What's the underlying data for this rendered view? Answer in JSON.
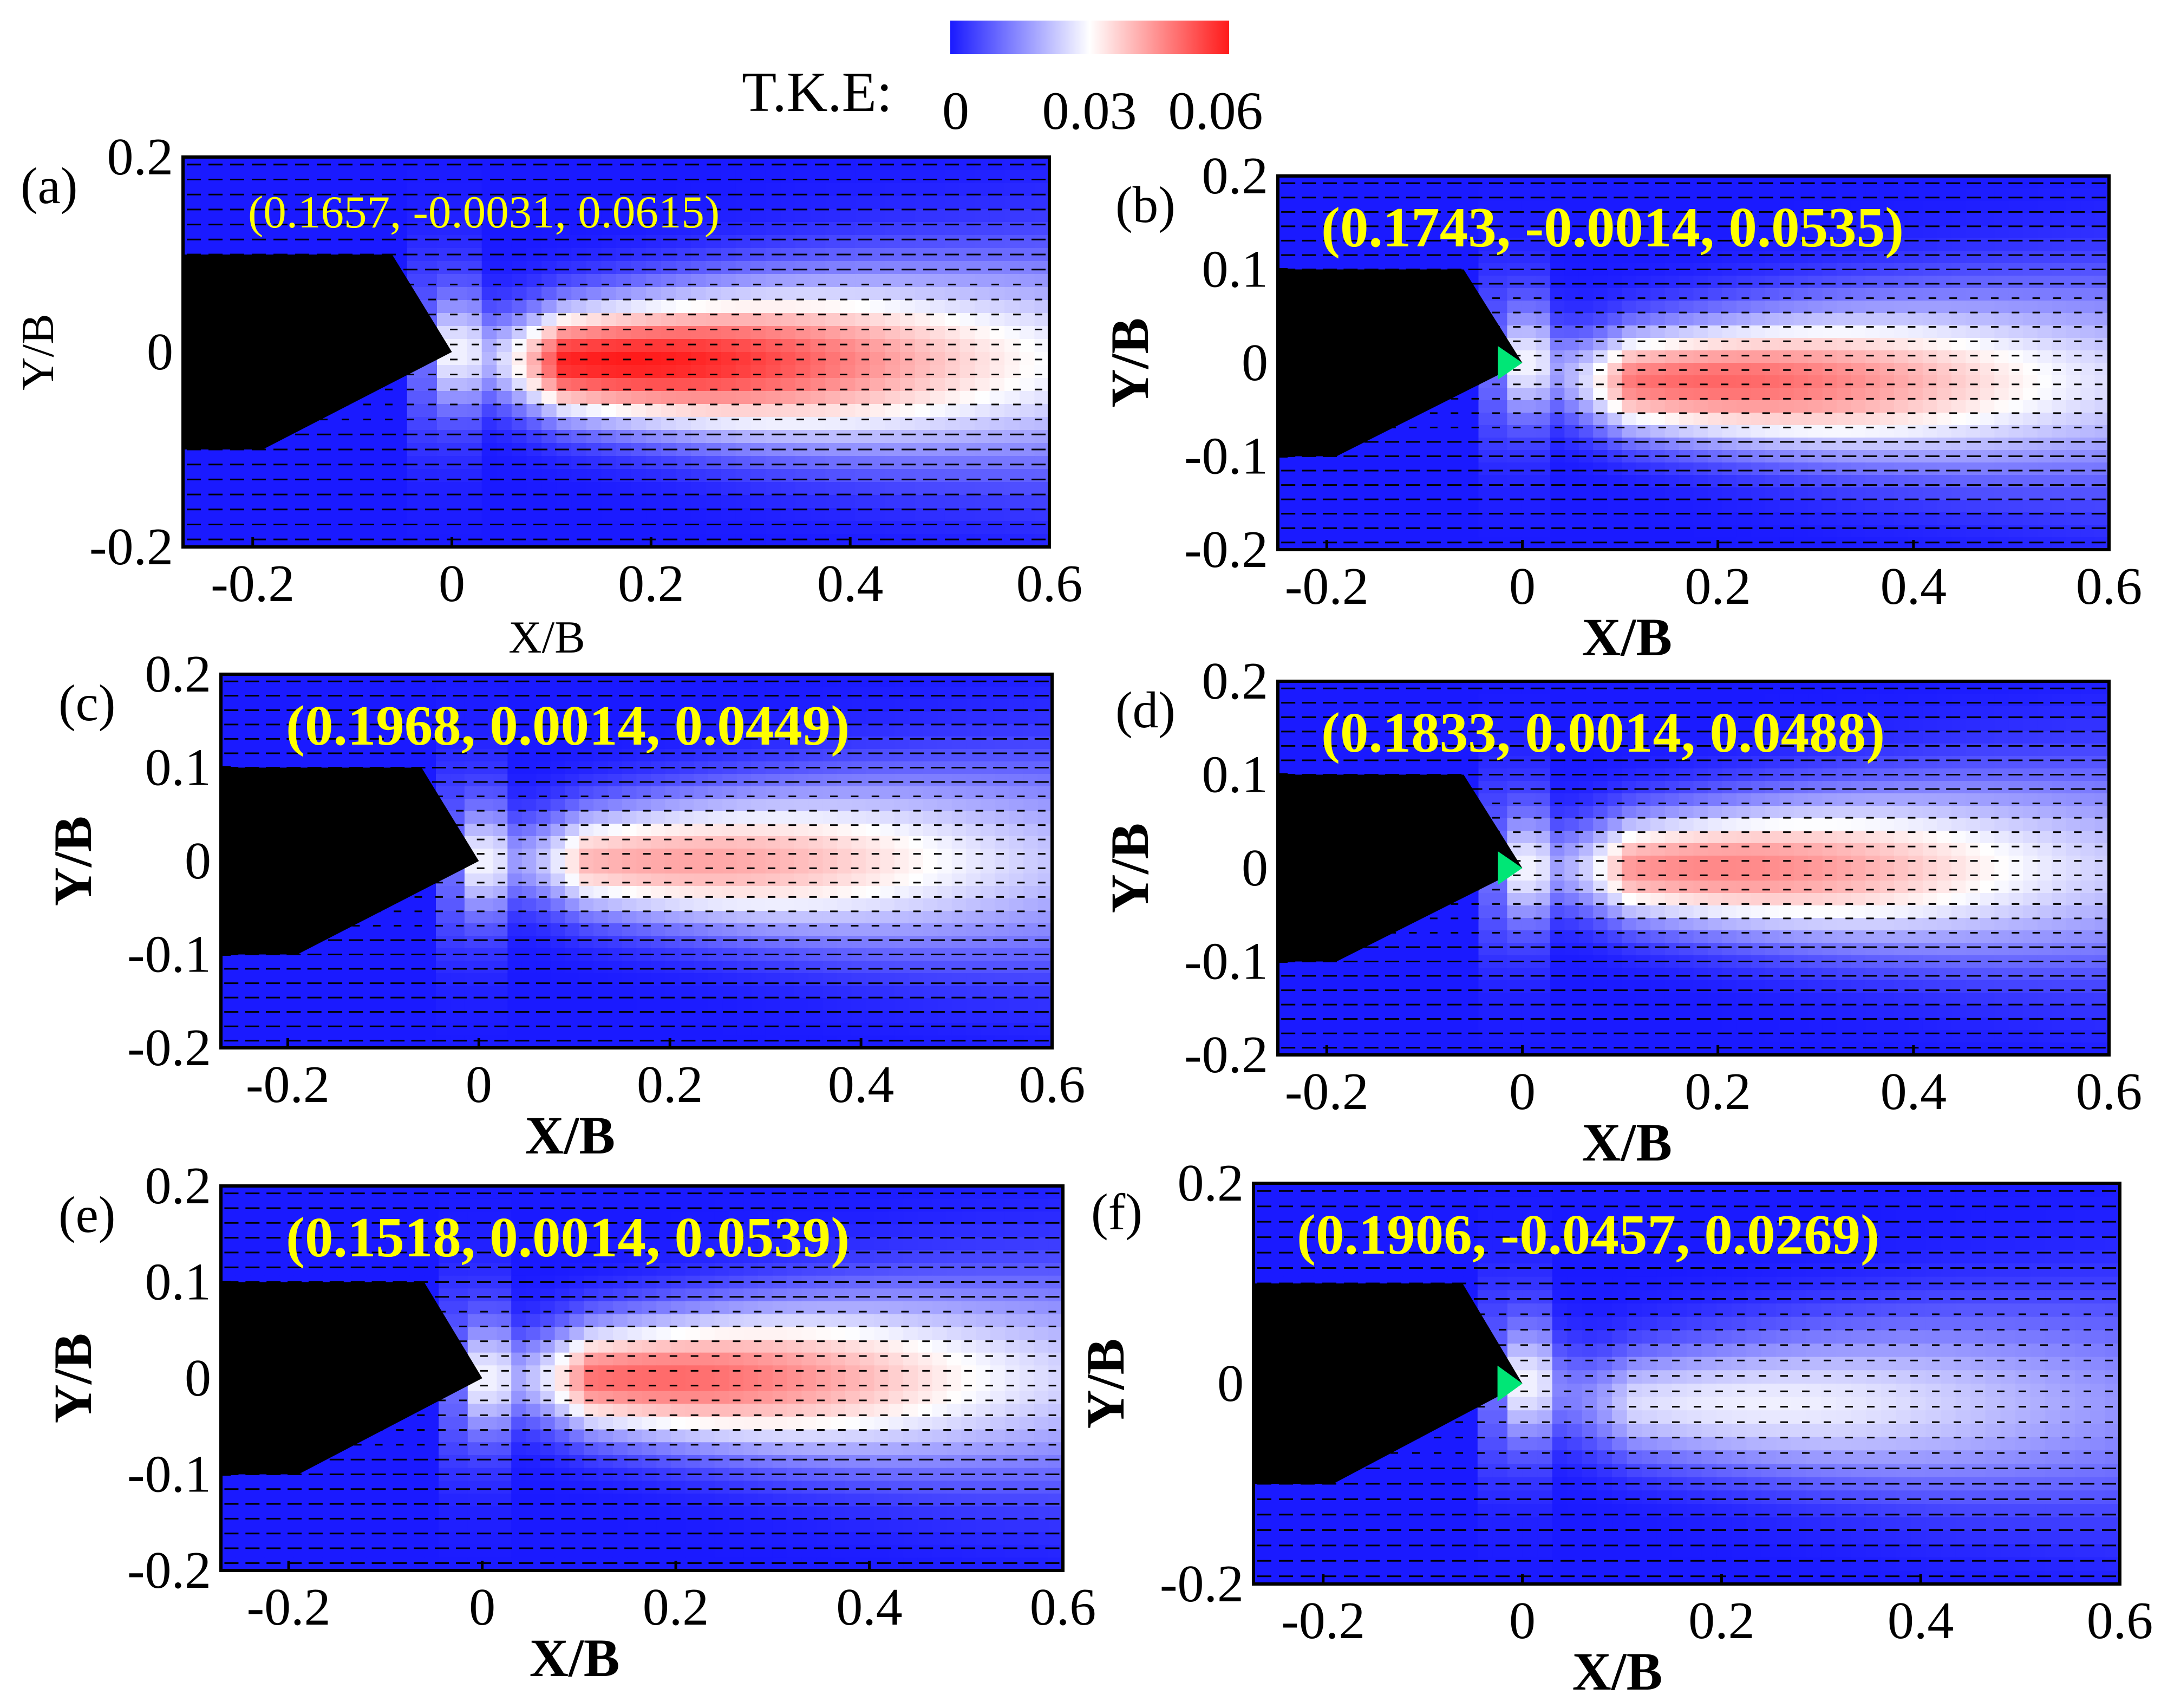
{
  "figure": {
    "colorbar": {
      "label": "T.K.E:",
      "ticks": [
        "0",
        "0.03",
        "0.06"
      ],
      "min": 0,
      "max": 0.06,
      "colors": {
        "low": "#1a1aff",
        "mid": "#ffffff",
        "high": "#ff1a1a"
      }
    },
    "body_color": "#000000",
    "tip_color": "#00e676",
    "annotation_color": "#ffff00"
  },
  "chart_data": [
    {
      "type": "heatmap",
      "panel": "(a)",
      "annotation": "(0.1657, -0.0031, 0.0615)",
      "annotation_bold": false,
      "xlabel": "X/B",
      "ylabel": "Y/B",
      "xlim": [
        -0.27,
        0.6
      ],
      "ylim": [
        -0.2,
        0.2
      ],
      "xticks": [
        "-0.2",
        "0",
        "0.2",
        "0.4",
        "0.6"
      ],
      "yticks": [
        "0.2",
        "0",
        "-0.2"
      ],
      "tke_peak": 0.06,
      "peak_location": [
        0.18,
        -0.01
      ],
      "tip_marker": false
    },
    {
      "type": "heatmap",
      "panel": "(b)",
      "annotation": "(0.1743, -0.0014, 0.0535)",
      "annotation_bold": true,
      "xlabel": "X/B",
      "ylabel": "Y/B",
      "xlim": [
        -0.25,
        0.6
      ],
      "ylim": [
        -0.2,
        0.2
      ],
      "xticks": [
        "-0.2",
        "0",
        "0.2",
        "0.4",
        "0.6"
      ],
      "yticks": [
        "0.2",
        "0.1",
        "0",
        "-0.1",
        "-0.2"
      ],
      "tke_peak": 0.05,
      "peak_location": [
        0.2,
        -0.02
      ],
      "tip_marker": true
    },
    {
      "type": "heatmap",
      "panel": "(c)",
      "annotation": "(0.1968, 0.0014, 0.0449)",
      "annotation_bold": true,
      "xlabel": "X/B",
      "ylabel": "Y/B",
      "xlim": [
        -0.27,
        0.6
      ],
      "ylim": [
        -0.2,
        0.2
      ],
      "xticks": [
        "-0.2",
        "0",
        "0.2",
        "0.4",
        "0.6"
      ],
      "yticks": [
        "0.2",
        "0.1",
        "0",
        "-0.1",
        "-0.2"
      ],
      "tke_peak": 0.042,
      "peak_location": [
        0.22,
        0.0
      ],
      "tip_marker": false
    },
    {
      "type": "heatmap",
      "panel": "(d)",
      "annotation": "(0.1833, 0.0014, 0.0488)",
      "annotation_bold": true,
      "xlabel": "X/B",
      "ylabel": "Y/B",
      "xlim": [
        -0.25,
        0.6
      ],
      "ylim": [
        -0.2,
        0.2
      ],
      "xticks": [
        "-0.2",
        "0",
        "0.2",
        "0.4",
        "0.6"
      ],
      "yticks": [
        "0.2",
        "0.1",
        "0",
        "-0.1",
        "-0.2"
      ],
      "tke_peak": 0.046,
      "peak_location": [
        0.2,
        0.0
      ],
      "tip_marker": true
    },
    {
      "type": "heatmap",
      "panel": "(e)",
      "annotation": "(0.1518, 0.0014, 0.0539)",
      "annotation_bold": true,
      "xlabel": "X/B",
      "ylabel": "Y/B",
      "xlim": [
        -0.27,
        0.6
      ],
      "ylim": [
        -0.2,
        0.2
      ],
      "xticks": [
        "-0.2",
        "0",
        "0.2",
        "0.4",
        "0.6"
      ],
      "yticks": [
        "0.2",
        "0.1",
        "0",
        "-0.1",
        "-0.2"
      ],
      "tke_peak": 0.05,
      "peak_location": [
        0.18,
        0.0
      ],
      "tip_marker": false
    },
    {
      "type": "heatmap",
      "panel": "(f)",
      "annotation": "(0.1906, -0.0457, 0.0269)",
      "annotation_bold": true,
      "xlabel": "X/B",
      "ylabel": "Y/B",
      "xlim": [
        -0.27,
        0.6
      ],
      "ylim": [
        -0.2,
        0.2
      ],
      "xticks": [
        "-0.2",
        "0",
        "0.2",
        "0.4",
        "0.6"
      ],
      "yticks": [
        "0.2",
        "0",
        "-0.2"
      ],
      "tke_peak": 0.028,
      "peak_location": [
        0.25,
        -0.02
      ],
      "tip_marker": true
    }
  ]
}
